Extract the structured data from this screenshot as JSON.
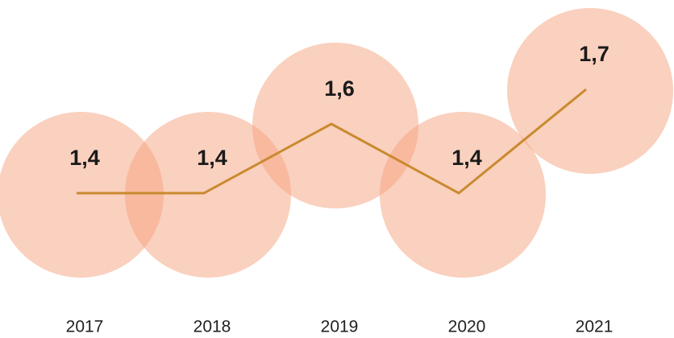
{
  "chart_data": {
    "type": "line",
    "categories": [
      "2017",
      "2018",
      "2019",
      "2020",
      "2021"
    ],
    "values": [
      1.4,
      1.4,
      1.6,
      1.4,
      1.7
    ],
    "value_labels": [
      "1,4",
      "1,4",
      "1,6",
      "1,4",
      "1,7"
    ],
    "color": "#c98a2f",
    "marker_color": "#f6a27e"
  }
}
